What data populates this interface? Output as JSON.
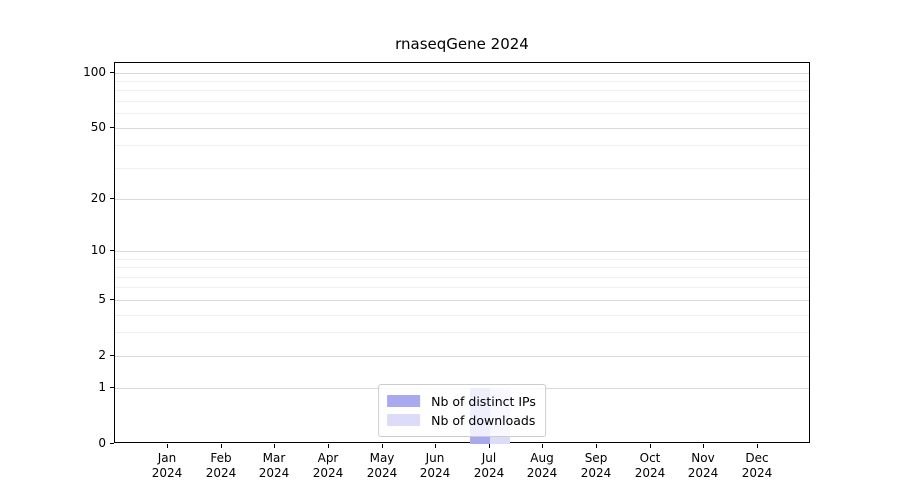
{
  "chart_data": {
    "type": "bar",
    "title": "rnaseqGene 2024",
    "categories": [
      "Jan 2024",
      "Feb 2024",
      "Mar 2024",
      "Apr 2024",
      "May 2024",
      "Jun 2024",
      "Jul 2024",
      "Aug 2024",
      "Sep 2024",
      "Oct 2024",
      "Nov 2024",
      "Dec 2024"
    ],
    "series": [
      {
        "name": "Nb of distinct IPs",
        "color": "#a9a9ef",
        "values": [
          0,
          0,
          0,
          0,
          0,
          0,
          1,
          0,
          0,
          0,
          0,
          0
        ]
      },
      {
        "name": "Nb of downloads",
        "color": "#dcdcf8",
        "values": [
          0,
          0,
          0,
          0,
          0,
          0,
          1,
          0,
          0,
          0,
          0,
          0
        ]
      }
    ],
    "xlabel": "",
    "ylabel": "",
    "yscale": "log1p",
    "ylim": [
      0,
      113
    ],
    "y_major_ticks": [
      0,
      1,
      2,
      5,
      10,
      20,
      50,
      100
    ],
    "y_minor_ticks": [
      3,
      4,
      6,
      7,
      8,
      9,
      30,
      40,
      60,
      70,
      80,
      90
    ],
    "grid": true,
    "legend_position": "lower center"
  },
  "colors": {
    "major_gridline": "#d9d9d9",
    "minor_gridline": "#efefef",
    "axis": "#000000",
    "background": "#ffffff"
  }
}
